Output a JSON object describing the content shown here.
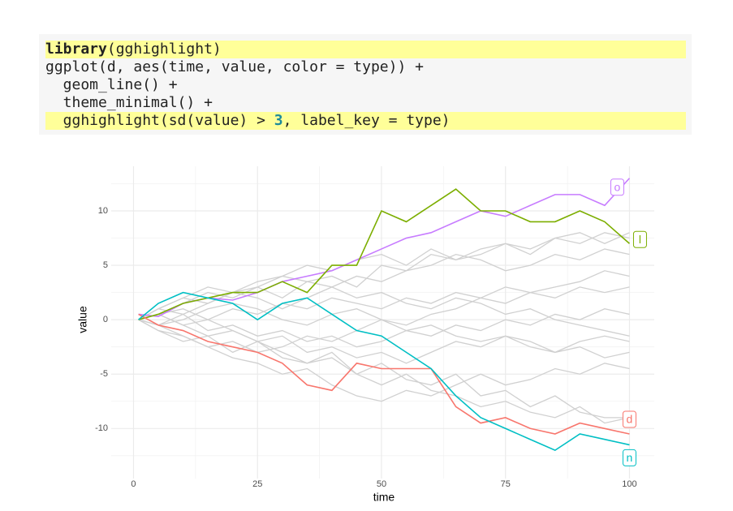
{
  "code": {
    "lines": [
      {
        "tokens": [
          "library",
          "(gghighlight)"
        ],
        "highlight": true
      },
      {
        "tokens": [
          "ggplot(d, aes(time, value, color = type)) +"
        ],
        "highlight": false
      },
      {
        "tokens": [
          "  geom_line() +"
        ],
        "highlight": false
      },
      {
        "tokens": [
          "  theme_minimal() +"
        ],
        "highlight": false
      },
      {
        "tokens": [
          "  gghighlight(sd(value) > ",
          "3",
          ", label_key = type)"
        ],
        "highlight": true
      }
    ]
  },
  "chart_data": {
    "type": "line",
    "x_label": "time",
    "y_label": "value",
    "x": [
      1,
      5,
      10,
      15,
      20,
      25,
      30,
      35,
      40,
      45,
      50,
      55,
      60,
      65,
      70,
      75,
      80,
      85,
      90,
      95,
      100
    ],
    "xlim": [
      -4.5,
      105
    ],
    "ylim": [
      -14.6,
      14.1
    ],
    "xticks": [
      0,
      25,
      50,
      75,
      100
    ],
    "yticks": [
      -10,
      -5,
      0,
      5,
      10
    ],
    "xminor": [
      12.5,
      37.5,
      62.5,
      87.5
    ],
    "yminor": [
      -12.5,
      -7.5,
      -2.5,
      2.5,
      7.5,
      12.5
    ],
    "grid": true,
    "series": [
      {
        "color": "#d0d0d0",
        "values": [
          0,
          -1,
          -2,
          -1.5,
          -3,
          -2,
          -3.5,
          -4,
          -3,
          -5,
          -4,
          -5.5,
          -6,
          -5,
          -7,
          -6.5,
          -8,
          -7,
          -8.5,
          -9,
          -9
        ]
      },
      {
        "color": "#d0d0d0",
        "values": [
          0,
          1,
          2,
          1.5,
          2.5,
          3,
          2,
          3.5,
          4,
          3,
          5,
          4.5,
          6,
          5.5,
          6.5,
          7,
          6,
          7.5,
          8,
          7,
          8
        ]
      },
      {
        "color": "#d0d0d0",
        "values": [
          0,
          0.5,
          -0.5,
          0,
          1,
          0.5,
          1.5,
          1,
          2,
          1.5,
          1,
          2,
          1.5,
          2.5,
          2,
          3,
          2.5,
          2,
          3,
          2.5,
          3
        ]
      },
      {
        "color": "#d0d0d0",
        "values": [
          0,
          -0.5,
          -1.5,
          -2.5,
          -3.5,
          -4,
          -5,
          -4.5,
          -6,
          -7,
          -7.5,
          -6.5,
          -7,
          -6,
          -5,
          -6,
          -5.5,
          -4.5,
          -5,
          -4,
          -4.5
        ]
      },
      {
        "color": "#d0d0d0",
        "values": [
          0,
          1,
          0.5,
          1.5,
          2.5,
          2,
          1,
          2,
          3,
          4,
          3.5,
          4.5,
          5,
          6,
          5.5,
          4.5,
          5,
          6,
          5.5,
          6.5,
          6
        ]
      },
      {
        "color": "#d0d0d0",
        "values": [
          0,
          -0.5,
          0.5,
          -1,
          -0.5,
          -1.5,
          -1,
          -2,
          -1.5,
          -2.5,
          -2,
          -1,
          -1.5,
          -0.5,
          -1,
          0,
          -0.5,
          0.5,
          0,
          1,
          0.5
        ]
      },
      {
        "color": "#d0d0d0",
        "values": [
          0,
          0.5,
          1,
          0,
          -1,
          -2,
          -1.5,
          -3,
          -2.5,
          -3.5,
          -3,
          -4,
          -3,
          -2,
          -2.5,
          -1.5,
          -2,
          -3,
          -2.5,
          -3.5,
          -3
        ]
      },
      {
        "color": "#d0d0d0",
        "values": [
          0,
          0.5,
          1.5,
          2.5,
          2,
          3,
          4,
          3.5,
          3,
          2,
          2.5,
          1.5,
          1,
          2,
          1.5,
          0.5,
          1,
          0,
          -0.5,
          -1,
          -1.5
        ]
      },
      {
        "color": "#d0d0d0",
        "values": [
          0,
          -1,
          -1.5,
          -2.5,
          -2,
          -3,
          -2.5,
          -1.5,
          -2,
          -1,
          0,
          -0.5,
          0.5,
          1,
          2,
          1.5,
          2.5,
          3,
          3.5,
          4.5,
          4
        ]
      },
      {
        "color": "#d0d0d0",
        "values": [
          0,
          0.5,
          -0.5,
          -1.5,
          -1,
          -2,
          -3,
          -4,
          -3.5,
          -5,
          -6,
          -5,
          -6.5,
          -7,
          -8,
          -7.5,
          -8.5,
          -9,
          -8,
          -9.5,
          -9
        ]
      },
      {
        "color": "#d0d0d0",
        "values": [
          0,
          1,
          2,
          3,
          2.5,
          3.5,
          4,
          5,
          4.5,
          5.5,
          6,
          5,
          6.5,
          5.5,
          6,
          7,
          6.5,
          7.5,
          7,
          8,
          7.5
        ]
      },
      {
        "color": "#d0d0d0",
        "values": [
          0,
          -0.5,
          0,
          1,
          1.5,
          1,
          0,
          -0.5,
          0.5,
          1,
          0,
          -1,
          -0.5,
          -1.5,
          -2,
          -1.5,
          -2.5,
          -3,
          -2,
          -1.5,
          -2
        ]
      },
      {
        "name": "o",
        "color": "#c77cff",
        "values": [
          0.5,
          0.3,
          1.5,
          2,
          1.8,
          2.5,
          3.5,
          4,
          4.5,
          5.5,
          6.5,
          7.5,
          8,
          9,
          10,
          9.5,
          10.5,
          11.5,
          11.5,
          10.5,
          13
        ]
      },
      {
        "name": "l",
        "color": "#7cae00",
        "values": [
          0,
          0.5,
          1.5,
          2,
          2.5,
          2.5,
          3.5,
          2.5,
          5,
          5,
          10,
          9,
          10.5,
          12,
          10,
          10,
          9,
          9,
          10,
          9,
          7
        ]
      },
      {
        "name": "d",
        "color": "#f8766d",
        "values": [
          0.5,
          -0.5,
          -1,
          -2,
          -2.5,
          -3,
          -4,
          -6,
          -6.5,
          -4,
          -4.5,
          -4.5,
          -4.5,
          -8,
          -9.5,
          -9,
          -10,
          -10.5,
          -9.5,
          -10,
          -10.5
        ]
      },
      {
        "name": "n",
        "color": "#00bfc4",
        "values": [
          0,
          1.5,
          2.5,
          2,
          1.5,
          0,
          1.5,
          2,
          0.5,
          -1,
          -1.5,
          -3,
          -4.5,
          -7,
          -9,
          -10,
          -11,
          -12,
          -10.5,
          -11,
          -11.5
        ]
      }
    ]
  }
}
